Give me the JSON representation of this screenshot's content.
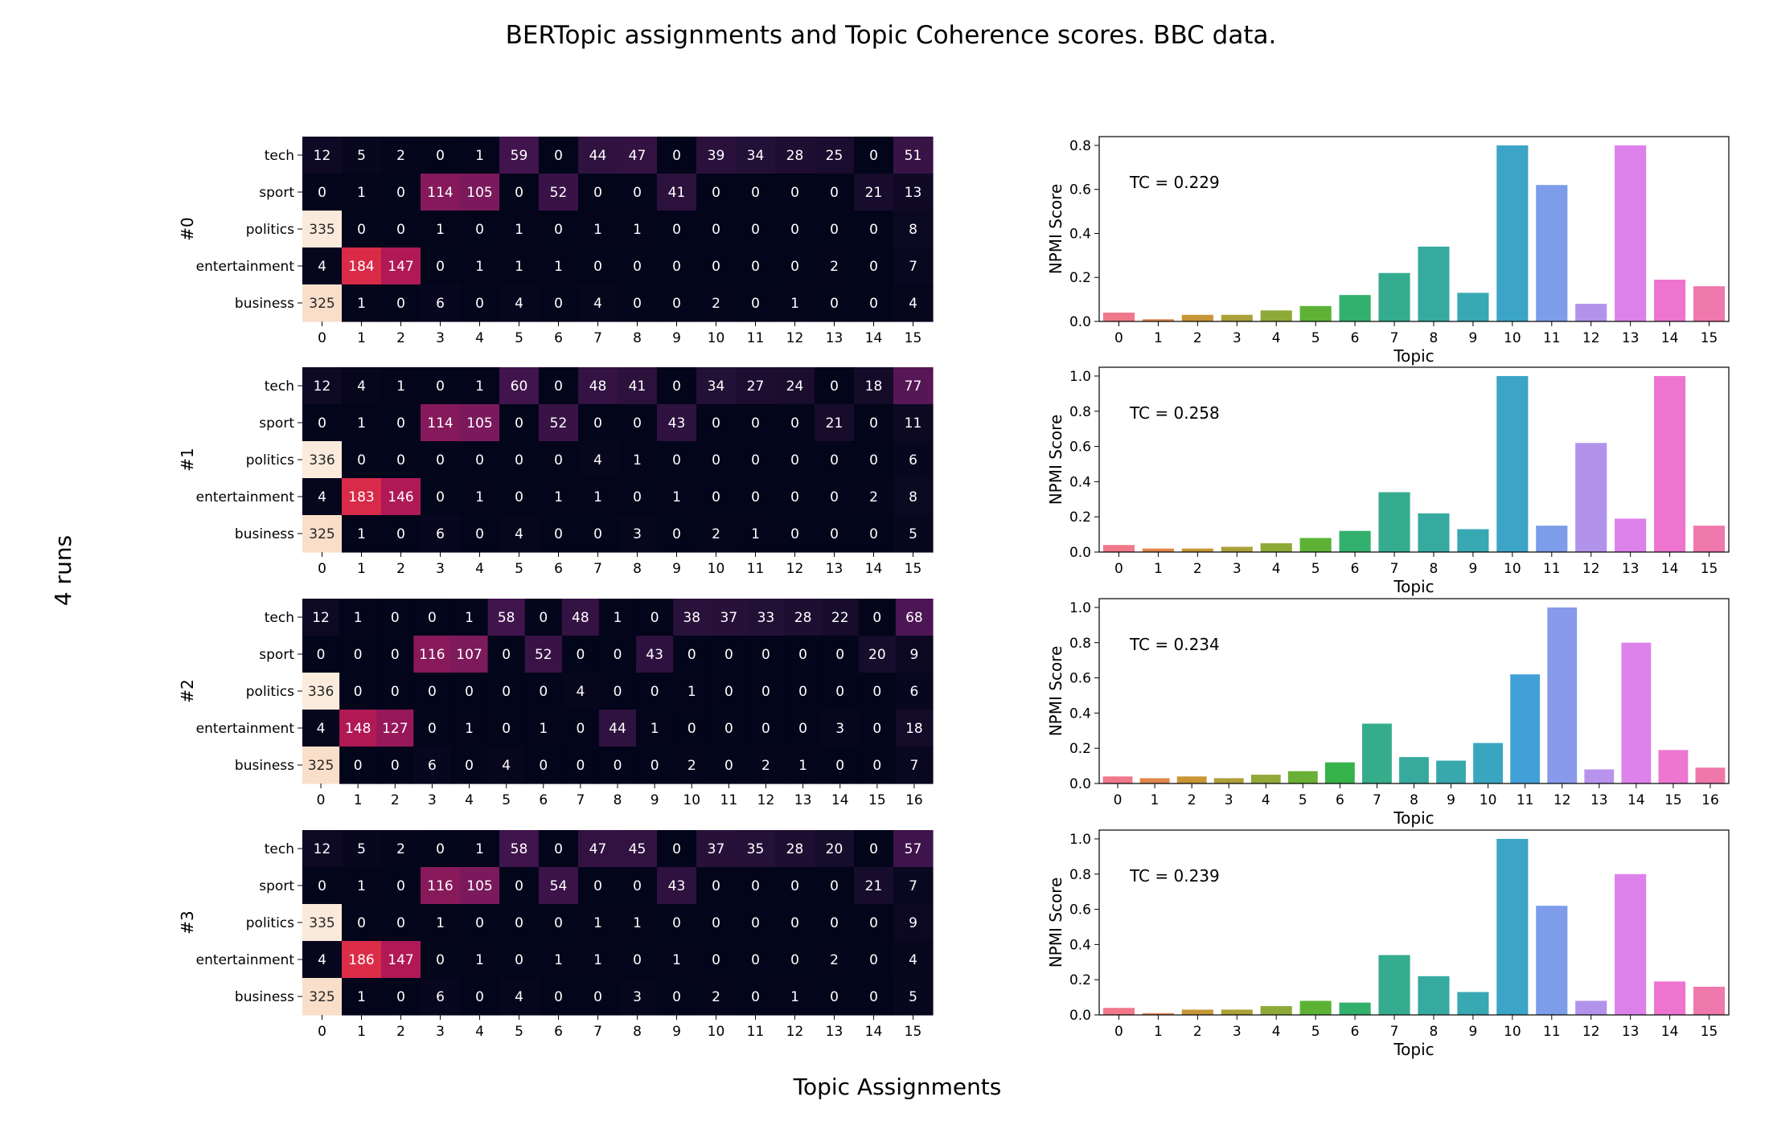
{
  "figure": {
    "title": "BERTopic assignments and Topic Coherence scores. BBC data.",
    "xlabel": "Topic Assignments",
    "ylabel": "4 runs"
  },
  "chart_data": [
    {
      "type": "heatmap",
      "run_label": "#0",
      "rows": [
        "tech",
        "sport",
        "politics",
        "entertainment",
        "business"
      ],
      "columns": [
        "0",
        "1",
        "2",
        "3",
        "4",
        "5",
        "6",
        "7",
        "8",
        "9",
        "10",
        "11",
        "12",
        "13",
        "14",
        "15"
      ],
      "values": [
        [
          12,
          5,
          2,
          0,
          1,
          59,
          0,
          44,
          47,
          0,
          39,
          34,
          28,
          25,
          0,
          51
        ],
        [
          0,
          1,
          0,
          114,
          105,
          0,
          52,
          0,
          0,
          41,
          0,
          0,
          0,
          0,
          21,
          13
        ],
        [
          335,
          0,
          0,
          1,
          0,
          1,
          0,
          1,
          1,
          0,
          0,
          0,
          0,
          0,
          0,
          8
        ],
        [
          4,
          184,
          147,
          0,
          1,
          1,
          1,
          0,
          0,
          0,
          0,
          0,
          0,
          2,
          0,
          7
        ],
        [
          325,
          1,
          0,
          6,
          0,
          4,
          0,
          4,
          0,
          0,
          2,
          0,
          1,
          0,
          0,
          4
        ]
      ],
      "vmax": 336
    },
    {
      "type": "bar",
      "xlabel": "Topic",
      "ylabel": "NPMI Score",
      "annotation": "TC = 0.229",
      "categories": [
        "0",
        "1",
        "2",
        "3",
        "4",
        "5",
        "6",
        "7",
        "8",
        "9",
        "10",
        "11",
        "12",
        "13",
        "14",
        "15"
      ],
      "values": [
        0.04,
        0.01,
        0.03,
        0.03,
        0.05,
        0.07,
        0.12,
        0.22,
        0.34,
        0.13,
        0.8,
        0.62,
        0.08,
        0.8,
        0.19,
        0.16
      ],
      "ylim": [
        0,
        0.84
      ],
      "yticks": [
        "0.0",
        "0.2",
        "0.4",
        "0.6",
        "0.8"
      ]
    },
    {
      "type": "heatmap",
      "run_label": "#1",
      "rows": [
        "tech",
        "sport",
        "politics",
        "entertainment",
        "business"
      ],
      "columns": [
        "0",
        "1",
        "2",
        "3",
        "4",
        "5",
        "6",
        "7",
        "8",
        "9",
        "10",
        "11",
        "12",
        "13",
        "14",
        "15"
      ],
      "values": [
        [
          12,
          4,
          1,
          0,
          1,
          60,
          0,
          48,
          41,
          0,
          34,
          27,
          24,
          0,
          18,
          77
        ],
        [
          0,
          1,
          0,
          114,
          105,
          0,
          52,
          0,
          0,
          43,
          0,
          0,
          0,
          21,
          0,
          11
        ],
        [
          336,
          0,
          0,
          0,
          0,
          0,
          0,
          4,
          1,
          0,
          0,
          0,
          0,
          0,
          0,
          6
        ],
        [
          4,
          183,
          146,
          0,
          1,
          0,
          1,
          1,
          0,
          1,
          0,
          0,
          0,
          0,
          2,
          8
        ],
        [
          325,
          1,
          0,
          6,
          0,
          4,
          0,
          0,
          3,
          0,
          2,
          1,
          0,
          0,
          0,
          5
        ]
      ],
      "vmax": 336
    },
    {
      "type": "bar",
      "xlabel": "Topic",
      "ylabel": "NPMI Score",
      "annotation": "TC = 0.258",
      "categories": [
        "0",
        "1",
        "2",
        "3",
        "4",
        "5",
        "6",
        "7",
        "8",
        "9",
        "10",
        "11",
        "12",
        "13",
        "14",
        "15"
      ],
      "values": [
        0.04,
        0.02,
        0.02,
        0.03,
        0.05,
        0.08,
        0.12,
        0.34,
        0.22,
        0.13,
        1.0,
        0.15,
        0.62,
        0.19,
        1.0,
        0.15
      ],
      "ylim": [
        0,
        1.05
      ],
      "yticks": [
        "0.0",
        "0.2",
        "0.4",
        "0.6",
        "0.8",
        "1.0"
      ]
    },
    {
      "type": "heatmap",
      "run_label": "#2",
      "rows": [
        "tech",
        "sport",
        "politics",
        "entertainment",
        "business"
      ],
      "columns": [
        "0",
        "1",
        "2",
        "3",
        "4",
        "5",
        "6",
        "7",
        "8",
        "9",
        "10",
        "11",
        "12",
        "13",
        "14",
        "15",
        "16"
      ],
      "values": [
        [
          12,
          1,
          0,
          0,
          1,
          58,
          0,
          48,
          1,
          0,
          38,
          37,
          33,
          28,
          22,
          0,
          68
        ],
        [
          0,
          0,
          0,
          116,
          107,
          0,
          52,
          0,
          0,
          43,
          0,
          0,
          0,
          0,
          0,
          20,
          9
        ],
        [
          336,
          0,
          0,
          0,
          0,
          0,
          0,
          4,
          0,
          0,
          1,
          0,
          0,
          0,
          0,
          0,
          6
        ],
        [
          4,
          148,
          127,
          0,
          1,
          0,
          1,
          0,
          44,
          1,
          0,
          0,
          0,
          0,
          3,
          0,
          18
        ],
        [
          325,
          0,
          0,
          6,
          0,
          4,
          0,
          0,
          0,
          0,
          2,
          0,
          2,
          1,
          0,
          0,
          7
        ]
      ],
      "vmax": 336
    },
    {
      "type": "bar",
      "xlabel": "Topic",
      "ylabel": "NPMI Score",
      "annotation": "TC = 0.234",
      "categories": [
        "0",
        "1",
        "2",
        "3",
        "4",
        "5",
        "6",
        "7",
        "8",
        "9",
        "10",
        "11",
        "12",
        "13",
        "14",
        "15",
        "16"
      ],
      "values": [
        0.04,
        0.03,
        0.04,
        0.03,
        0.05,
        0.07,
        0.12,
        0.34,
        0.15,
        0.13,
        0.23,
        0.62,
        1.0,
        0.08,
        0.8,
        0.19,
        0.09
      ],
      "ylim": [
        0,
        1.05
      ],
      "yticks": [
        "0.0",
        "0.2",
        "0.4",
        "0.6",
        "0.8",
        "1.0"
      ]
    },
    {
      "type": "heatmap",
      "run_label": "#3",
      "rows": [
        "tech",
        "sport",
        "politics",
        "entertainment",
        "business"
      ],
      "columns": [
        "0",
        "1",
        "2",
        "3",
        "4",
        "5",
        "6",
        "7",
        "8",
        "9",
        "10",
        "11",
        "12",
        "13",
        "14",
        "15"
      ],
      "values": [
        [
          12,
          5,
          2,
          0,
          1,
          58,
          0,
          47,
          45,
          0,
          37,
          35,
          28,
          20,
          0,
          57
        ],
        [
          0,
          1,
          0,
          116,
          105,
          0,
          54,
          0,
          0,
          43,
          0,
          0,
          0,
          0,
          21,
          7
        ],
        [
          335,
          0,
          0,
          1,
          0,
          0,
          0,
          1,
          1,
          0,
          0,
          0,
          0,
          0,
          0,
          9
        ],
        [
          4,
          186,
          147,
          0,
          1,
          0,
          1,
          1,
          0,
          1,
          0,
          0,
          0,
          2,
          0,
          4
        ],
        [
          325,
          1,
          0,
          6,
          0,
          4,
          0,
          0,
          3,
          0,
          2,
          0,
          1,
          0,
          0,
          5
        ]
      ],
      "vmax": 336
    },
    {
      "type": "bar",
      "xlabel": "Topic",
      "ylabel": "NPMI Score",
      "annotation": "TC = 0.239",
      "categories": [
        "0",
        "1",
        "2",
        "3",
        "4",
        "5",
        "6",
        "7",
        "8",
        "9",
        "10",
        "11",
        "12",
        "13",
        "14",
        "15"
      ],
      "values": [
        0.04,
        0.01,
        0.03,
        0.03,
        0.05,
        0.08,
        0.07,
        0.34,
        0.22,
        0.13,
        1.0,
        0.62,
        0.08,
        0.8,
        0.19,
        0.16
      ],
      "ylim": [
        0,
        1.05
      ],
      "yticks": [
        "0.0",
        "0.2",
        "0.4",
        "0.6",
        "0.8",
        "1.0"
      ]
    }
  ]
}
